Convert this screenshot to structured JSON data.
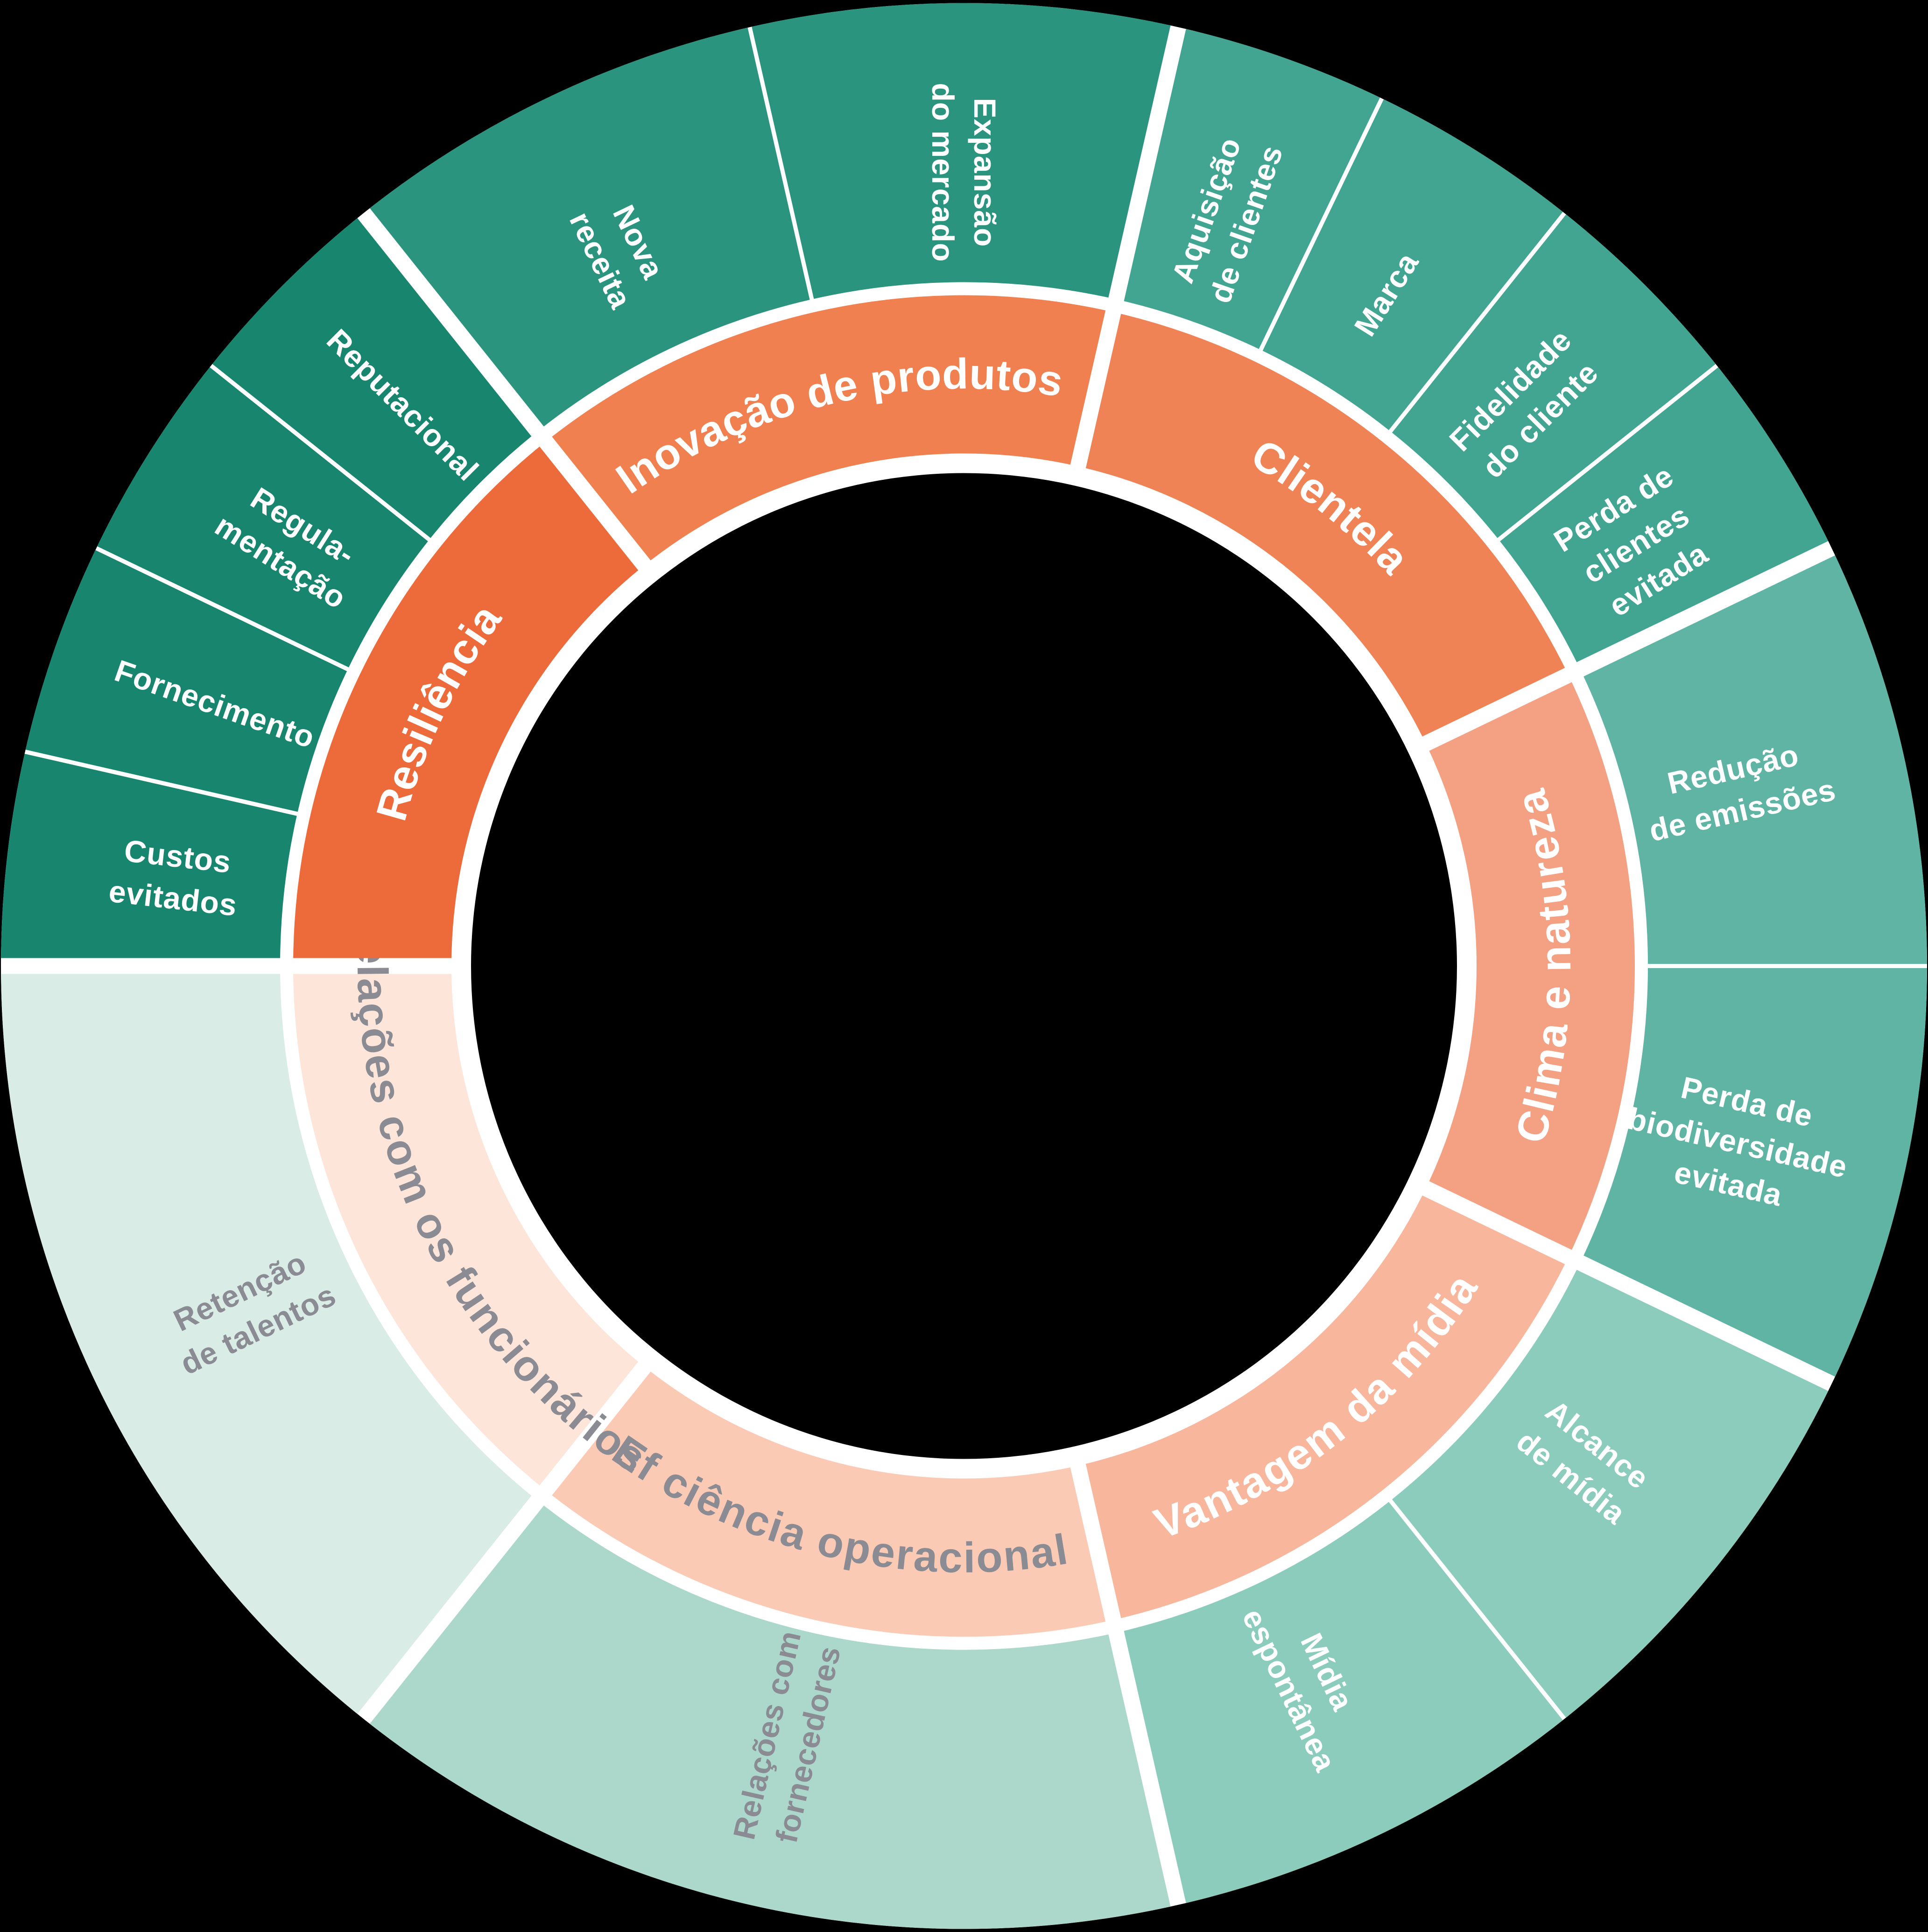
{
  "background_color": "#000000",
  "divider_color": "#ffffff",
  "center_hole_color": "#000000",
  "muted_text_color": "#8b8b94",
  "chart_data": {
    "type": "sunburst",
    "rings": 2,
    "title": "",
    "layout_hint": "7 equal inner category wedges, outer subcategory wedges equally split within each parent; white radial dividers; black center hole with white rim",
    "segments": [
      {
        "id": "inovacao-de-produtos",
        "label": "Inovação de produtos",
        "color": "#f0804f",
        "label_color": "#ffffff",
        "children": [
          {
            "id": "nova-receita",
            "label": "Nova receita",
            "lines": [
              "Nova",
              "receita"
            ],
            "color": "#2a947f",
            "label_color": "#ffffff"
          },
          {
            "id": "expansao-do-mercado",
            "label": "Expansão do mercado",
            "lines": [
              "Expansão",
              "do mercado"
            ],
            "color": "#2a947f",
            "label_color": "#ffffff"
          }
        ]
      },
      {
        "id": "clientela",
        "label": "Clientela",
        "color": "#f08356",
        "label_color": "#ffffff",
        "children": [
          {
            "id": "aquisicao-de-clientes",
            "label": "Aquisição de clientes",
            "lines": [
              "Aquisição",
              "de clientes"
            ],
            "color": "#41a591",
            "label_color": "#ffffff"
          },
          {
            "id": "marca",
            "label": "Marca",
            "lines": [
              "Marca"
            ],
            "color": "#41a591",
            "label_color": "#ffffff"
          },
          {
            "id": "fidelidade-do-cliente",
            "label": "Fidelidade do cliente",
            "lines": [
              "Fidelidade",
              "do cliente"
            ],
            "color": "#41a591",
            "label_color": "#ffffff"
          },
          {
            "id": "perda-de-clientes-evitada",
            "label": "Perda de clientes evitada",
            "lines": [
              "Perda de",
              "clientes",
              "evitada"
            ],
            "color": "#41a591",
            "label_color": "#ffffff"
          }
        ]
      },
      {
        "id": "clima-e-natureza",
        "label": "Clima e natureza",
        "color": "#f4a183",
        "label_color": "#ffffff",
        "children": [
          {
            "id": "reducao-de-emissoes",
            "label": "Redução de emissões",
            "lines": [
              "Redução",
              "de emissões"
            ],
            "color": "#5fb4a3",
            "label_color": "#ffffff"
          },
          {
            "id": "perda-de-biodiversidade-evitada",
            "label": "Perda de biodiversidade evitada",
            "lines": [
              "Perda de",
              "biodiversidade",
              "evitada"
            ],
            "color": "#5fb4a3",
            "label_color": "#ffffff"
          }
        ]
      },
      {
        "id": "vantagem-da-midia",
        "label": "Vantagem da mídia",
        "color": "#f8b79d",
        "label_color": "#ffffff",
        "children": [
          {
            "id": "alcance-de-midia",
            "label": "Alcance de mídia",
            "lines": [
              "Alcance",
              "de mídia"
            ],
            "color": "#8bccbd",
            "label_color": "#ffffff"
          },
          {
            "id": "midia-espontanea",
            "label": "Mídia espontânea",
            "lines": [
              "Mídia",
              "espontânea"
            ],
            "color": "#8bccbd",
            "label_color": "#ffffff"
          }
        ]
      },
      {
        "id": "eficiencia-operacional",
        "label": "Ef ciência operacional",
        "color": "#fbcab5",
        "label_color": "#8b8b94",
        "children": [
          {
            "id": "relacoes-com-fornecedores",
            "label": "Relações com fornecedores",
            "lines": [
              "Relações com",
              "fornecedores"
            ],
            "color": "#abd8cb",
            "label_color": "#8b8b94"
          }
        ]
      },
      {
        "id": "relacoes-com-os-funcionarios",
        "label": "Relações com os funcionários",
        "color": "#fde5da",
        "label_color": "#8b8b94",
        "children": [
          {
            "id": "retencao-de-talentos",
            "label": "Retenção de talentos",
            "lines": [
              "Retenção",
              "de talentos"
            ],
            "color": "#d9ece5",
            "label_color": "#8b8b94"
          }
        ]
      },
      {
        "id": "resiliencia",
        "label": "Resiliência",
        "color": "#ed6b3b",
        "label_color": "#ffffff",
        "children": [
          {
            "id": "custos-evitados",
            "label": "Custos evitados",
            "lines": [
              "Custos",
              "evitados"
            ],
            "color": "#18866e",
            "label_color": "#ffffff"
          },
          {
            "id": "fornecimento",
            "label": "Fornecimento",
            "lines": [
              "Fornecimento"
            ],
            "color": "#18866e",
            "label_color": "#ffffff"
          },
          {
            "id": "regulamentacao",
            "label": "Regula-mentação",
            "lines": [
              "Regula-",
              "mentação"
            ],
            "color": "#18866e",
            "label_color": "#ffffff"
          },
          {
            "id": "reputacional",
            "label": "Reputacional",
            "lines": [
              "Reputacional"
            ],
            "color": "#18866e",
            "label_color": "#ffffff"
          }
        ]
      }
    ]
  }
}
